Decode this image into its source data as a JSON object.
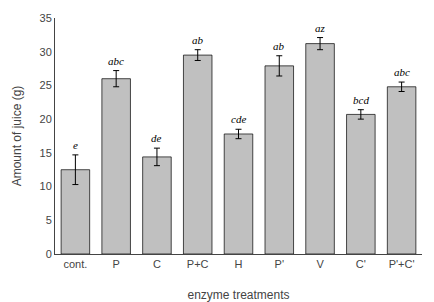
{
  "chart_data": {
    "type": "bar",
    "categories": [
      "cont.",
      "P",
      "C",
      "P+C",
      "H",
      "P'",
      "V",
      "C'",
      "P'+C'"
    ],
    "values": [
      12.5,
      26.0,
      14.4,
      29.5,
      17.8,
      27.9,
      31.2,
      20.7,
      24.8
    ],
    "errors": [
      2.2,
      1.2,
      1.3,
      0.8,
      0.7,
      1.5,
      0.9,
      0.7,
      0.7
    ],
    "annotations": [
      "e",
      "abc",
      "de",
      "ab",
      "cde",
      "ab",
      "az",
      "bcd",
      "abc"
    ],
    "color": "#c0c0c0",
    "ylabel": "Amount of juice (g)",
    "xlabel": "enzyme treatments",
    "ylim": [
      0,
      35
    ],
    "yticks": [
      0,
      5,
      10,
      15,
      20,
      25,
      30,
      35
    ],
    "grid": false
  }
}
